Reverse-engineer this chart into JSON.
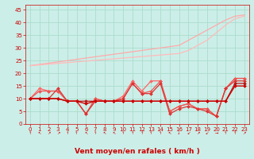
{
  "x": [
    0,
    1,
    2,
    3,
    4,
    5,
    6,
    7,
    8,
    9,
    10,
    11,
    12,
    13,
    14,
    15,
    16,
    17,
    18,
    19,
    20,
    21,
    22,
    23
  ],
  "series": [
    {
      "color": "#ffaaaa",
      "linewidth": 0.9,
      "marker": null,
      "y": [
        23.0,
        23.5,
        24.0,
        24.5,
        25.0,
        25.5,
        26.0,
        26.5,
        27.0,
        27.5,
        28.0,
        28.5,
        29.0,
        29.5,
        30.0,
        30.5,
        31.0,
        33.0,
        35.0,
        37.0,
        39.0,
        41.0,
        42.5,
        43.0
      ]
    },
    {
      "color": "#ffbbbb",
      "linewidth": 0.9,
      "marker": null,
      "y": [
        23.0,
        23.3,
        23.6,
        23.9,
        24.2,
        24.5,
        24.8,
        25.1,
        25.4,
        25.7,
        26.0,
        26.3,
        26.6,
        26.9,
        27.2,
        27.5,
        27.8,
        29.0,
        31.0,
        33.0,
        36.0,
        39.0,
        41.5,
        42.5
      ]
    },
    {
      "color": "#ff6666",
      "linewidth": 0.9,
      "marker": "D",
      "markersize": 2.0,
      "y": [
        10,
        14,
        13,
        13,
        9,
        9,
        4,
        10,
        9,
        9,
        11,
        17,
        13,
        17,
        17,
        5,
        7,
        8,
        6,
        6,
        3,
        14,
        18,
        18
      ]
    },
    {
      "color": "#ee5555",
      "linewidth": 0.9,
      "marker": "D",
      "markersize": 2.0,
      "y": [
        10,
        13,
        13,
        13,
        9,
        9,
        4,
        10,
        9,
        9,
        10,
        16,
        12,
        13,
        17,
        5,
        7,
        8,
        6,
        6,
        3,
        14,
        18,
        18
      ]
    },
    {
      "color": "#dd3333",
      "linewidth": 0.9,
      "marker": "D",
      "markersize": 2.0,
      "y": [
        10,
        10,
        10,
        14,
        9,
        9,
        4,
        9,
        9,
        9,
        10,
        16,
        12,
        12,
        16,
        4,
        6,
        7,
        6,
        5,
        3,
        14,
        17,
        17
      ]
    },
    {
      "color": "#bb1111",
      "linewidth": 0.9,
      "marker": "D",
      "markersize": 2.0,
      "y": [
        10,
        10,
        10,
        10,
        9,
        9,
        9,
        9,
        9,
        9,
        9,
        9,
        9,
        9,
        9,
        9,
        9,
        9,
        9,
        9,
        9,
        9,
        16,
        16
      ]
    },
    {
      "color": "#cc0000",
      "linewidth": 1.0,
      "marker": "D",
      "markersize": 2.0,
      "y": [
        10,
        10,
        10,
        10,
        9,
        9,
        8,
        9,
        9,
        9,
        9,
        9,
        9,
        9,
        9,
        9,
        9,
        9,
        9,
        9,
        9,
        9,
        15,
        15
      ]
    }
  ],
  "wind_arrows": [
    "↑",
    "↖",
    "↗",
    "↗",
    "↑",
    "↑",
    "↖",
    "↑",
    "↖",
    "↖",
    "↑",
    "↑",
    "↑",
    "↑",
    "↑",
    "↖",
    "↓",
    "↙",
    "↗",
    "↙",
    "→",
    "↑",
    "↑",
    "↗"
  ],
  "xlabel": "Vent moyen/en rafales ( km/h )",
  "yticks": [
    0,
    5,
    10,
    15,
    20,
    25,
    30,
    35,
    40,
    45
  ],
  "xticks": [
    0,
    1,
    2,
    3,
    4,
    5,
    6,
    7,
    8,
    9,
    10,
    11,
    12,
    13,
    14,
    15,
    16,
    17,
    18,
    19,
    20,
    21,
    22,
    23
  ],
  "ylim": [
    0,
    47
  ],
  "xlim": [
    -0.5,
    23.5
  ],
  "bg_color": "#cceee8",
  "grid_color": "#aaddcc",
  "text_color": "#cc0000",
  "xlabel_fontsize": 6.5,
  "tick_fontsize": 5.0
}
